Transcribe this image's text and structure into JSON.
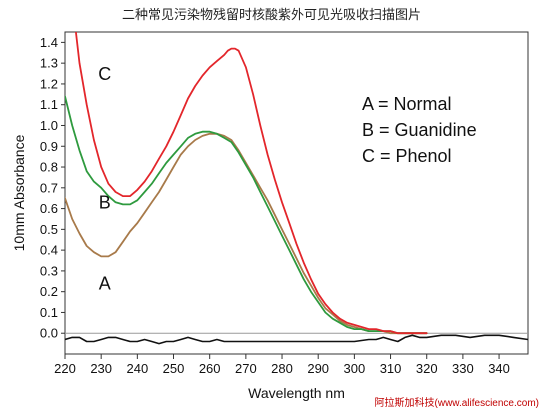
{
  "header": {
    "title": "二种常见污染物残留时核酸紫外可见光吸收扫描图片",
    "credit": "阿拉斯加科技(www.alifescience.com)"
  },
  "chart_data": {
    "type": "line",
    "xlabel": "Wavelength nm",
    "ylabel": "10mm Absorbance",
    "xlim": [
      220,
      348
    ],
    "ylim": [
      -0.1,
      1.45
    ],
    "xticks": [
      "220",
      "230",
      "240",
      "250",
      "260",
      "270",
      "280",
      "290",
      "300",
      "310",
      "320",
      "330",
      "340"
    ],
    "yticks": [
      "0.0",
      "0.1",
      "0.2",
      "0.3",
      "0.4",
      "0.5",
      "0.6",
      "0.7",
      "0.8",
      "0.9",
      "1.0",
      "1.1",
      "1.2",
      "1.3",
      "1.4"
    ],
    "legend": [
      "A = Normal",
      "B = Guanidine",
      "C = Phenol"
    ],
    "curve_labels": [
      {
        "text": "A",
        "x": 231,
        "y": 0.21
      },
      {
        "text": "B",
        "x": 231,
        "y": 0.6
      },
      {
        "text": "C",
        "x": 231,
        "y": 1.22
      }
    ],
    "series": [
      {
        "name": "A = Normal",
        "color": "#a87a4a",
        "x": [
          220,
          222,
          224,
          226,
          228,
          230,
          232,
          234,
          236,
          238,
          240,
          242,
          244,
          246,
          248,
          250,
          252,
          254,
          256,
          258,
          260,
          262,
          264,
          266,
          268,
          270,
          272,
          274,
          276,
          278,
          280,
          282,
          284,
          286,
          288,
          290,
          292,
          294,
          296,
          298,
          300,
          302,
          304,
          306,
          308,
          310,
          312,
          314,
          316,
          318,
          320
        ],
        "y": [
          0.65,
          0.55,
          0.48,
          0.42,
          0.39,
          0.37,
          0.37,
          0.39,
          0.44,
          0.49,
          0.53,
          0.58,
          0.63,
          0.68,
          0.74,
          0.8,
          0.86,
          0.9,
          0.93,
          0.95,
          0.96,
          0.96,
          0.95,
          0.93,
          0.88,
          0.82,
          0.76,
          0.7,
          0.64,
          0.57,
          0.5,
          0.43,
          0.36,
          0.29,
          0.23,
          0.17,
          0.12,
          0.09,
          0.06,
          0.04,
          0.03,
          0.02,
          0.01,
          0.01,
          0.01,
          0.0,
          0.0,
          0.0,
          0.0,
          0.0,
          0.0
        ]
      },
      {
        "name": "B = Guanidine",
        "color": "#2e9a3e",
        "x": [
          220,
          222,
          224,
          226,
          228,
          230,
          232,
          234,
          236,
          238,
          240,
          242,
          244,
          246,
          248,
          250,
          252,
          254,
          256,
          258,
          260,
          262,
          264,
          266,
          268,
          270,
          272,
          274,
          276,
          278,
          280,
          282,
          284,
          286,
          288,
          290,
          292,
          294,
          296,
          298,
          300,
          302,
          304,
          306,
          308,
          310,
          312,
          314,
          316,
          318,
          320
        ],
        "y": [
          1.14,
          1.0,
          0.88,
          0.78,
          0.73,
          0.7,
          0.66,
          0.63,
          0.62,
          0.62,
          0.64,
          0.68,
          0.72,
          0.77,
          0.82,
          0.86,
          0.9,
          0.94,
          0.96,
          0.97,
          0.97,
          0.96,
          0.94,
          0.92,
          0.87,
          0.81,
          0.75,
          0.68,
          0.61,
          0.54,
          0.47,
          0.4,
          0.33,
          0.26,
          0.2,
          0.15,
          0.1,
          0.07,
          0.05,
          0.03,
          0.02,
          0.02,
          0.01,
          0.01,
          0.01,
          0.01,
          0.0,
          0.0,
          0.0,
          0.0,
          0.0
        ]
      },
      {
        "name": "C = Phenol",
        "color": "#e3262b",
        "x": [
          223,
          224,
          226,
          228,
          230,
          232,
          234,
          236,
          238,
          240,
          242,
          244,
          246,
          248,
          250,
          252,
          254,
          256,
          258,
          260,
          262,
          264,
          265,
          266,
          267,
          268,
          270,
          272,
          274,
          276,
          278,
          280,
          282,
          284,
          286,
          288,
          290,
          292,
          294,
          296,
          298,
          300,
          302,
          304,
          306,
          308,
          310,
          312,
          314,
          316,
          318,
          320
        ],
        "y": [
          1.45,
          1.3,
          1.1,
          0.93,
          0.8,
          0.72,
          0.68,
          0.66,
          0.66,
          0.69,
          0.73,
          0.78,
          0.84,
          0.9,
          0.97,
          1.05,
          1.13,
          1.19,
          1.24,
          1.28,
          1.31,
          1.34,
          1.36,
          1.37,
          1.37,
          1.36,
          1.28,
          1.15,
          1.0,
          0.86,
          0.74,
          0.63,
          0.53,
          0.43,
          0.34,
          0.26,
          0.19,
          0.14,
          0.1,
          0.07,
          0.05,
          0.04,
          0.03,
          0.02,
          0.02,
          0.01,
          0.01,
          0.0,
          0.0,
          0.0,
          0.0,
          0.0
        ]
      },
      {
        "name": "baseline",
        "color": "#111111",
        "x": [
          220,
          222,
          224,
          226,
          228,
          230,
          232,
          234,
          236,
          238,
          240,
          242,
          244,
          246,
          248,
          250,
          252,
          254,
          256,
          258,
          260,
          262,
          264,
          266,
          268,
          270,
          272,
          274,
          276,
          278,
          280,
          284,
          288,
          292,
          296,
          300,
          304,
          306,
          308,
          310,
          312,
          314,
          316,
          318,
          320,
          324,
          328,
          332,
          336,
          340,
          344,
          348
        ],
        "y": [
          -0.03,
          -0.02,
          -0.02,
          -0.04,
          -0.04,
          -0.03,
          -0.02,
          -0.02,
          -0.03,
          -0.04,
          -0.04,
          -0.03,
          -0.04,
          -0.05,
          -0.04,
          -0.04,
          -0.03,
          -0.02,
          -0.03,
          -0.04,
          -0.04,
          -0.03,
          -0.04,
          -0.04,
          -0.04,
          -0.04,
          -0.04,
          -0.04,
          -0.04,
          -0.04,
          -0.04,
          -0.04,
          -0.04,
          -0.04,
          -0.04,
          -0.04,
          -0.03,
          -0.03,
          -0.02,
          -0.03,
          -0.04,
          -0.02,
          -0.01,
          -0.02,
          -0.02,
          -0.01,
          -0.01,
          -0.02,
          -0.01,
          -0.01,
          -0.02,
          -0.03
        ]
      }
    ]
  }
}
